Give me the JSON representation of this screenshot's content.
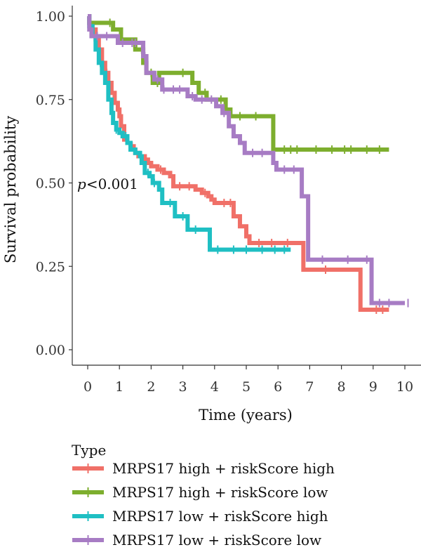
{
  "chart_data": {
    "type": "line",
    "subtype": "kaplan-meier",
    "xlabel": "Time (years)",
    "ylabel": "Survival probability",
    "xlim": [
      0,
      10
    ],
    "ylim": [
      0,
      1
    ],
    "x_ticks": [
      "0",
      "1",
      "2",
      "3",
      "4",
      "5",
      "6",
      "7",
      "8",
      "9",
      "10"
    ],
    "y_ticks": [
      "0.00",
      "0.25",
      "0.50",
      "0.75",
      "1.00"
    ],
    "grid": false,
    "annotation": {
      "italic": "p",
      "text": "<0.001"
    },
    "legend": {
      "title": "Type",
      "placement": "bottom"
    },
    "series": [
      {
        "name": "MRPS17 high + riskScore high",
        "color": "#F07068",
        "steps": [
          [
            0,
            1.0
          ],
          [
            0.05,
            0.98
          ],
          [
            0.15,
            0.96
          ],
          [
            0.25,
            0.93
          ],
          [
            0.35,
            0.9
          ],
          [
            0.45,
            0.86
          ],
          [
            0.55,
            0.83
          ],
          [
            0.65,
            0.8
          ],
          [
            0.75,
            0.77
          ],
          [
            0.85,
            0.74
          ],
          [
            0.95,
            0.72
          ],
          [
            1.0,
            0.7
          ],
          [
            1.05,
            0.67
          ],
          [
            1.15,
            0.63
          ],
          [
            1.25,
            0.62
          ],
          [
            1.35,
            0.61
          ],
          [
            1.45,
            0.6
          ],
          [
            1.5,
            0.59
          ],
          [
            1.6,
            0.58
          ],
          [
            1.8,
            0.57
          ],
          [
            1.9,
            0.56
          ],
          [
            2.0,
            0.55
          ],
          [
            2.2,
            0.54
          ],
          [
            2.4,
            0.53
          ],
          [
            2.6,
            0.52
          ],
          [
            2.7,
            0.49
          ],
          [
            3.4,
            0.48
          ],
          [
            3.6,
            0.47
          ],
          [
            3.8,
            0.46
          ],
          [
            3.9,
            0.45
          ],
          [
            4.0,
            0.44
          ],
          [
            4.6,
            0.4
          ],
          [
            4.8,
            0.37
          ],
          [
            5.0,
            0.34
          ],
          [
            5.1,
            0.32
          ],
          [
            6.8,
            0.24
          ],
          [
            8.6,
            0.12
          ],
          [
            9.5,
            0.12
          ]
        ],
        "censor": [
          0.3,
          0.6,
          1.4,
          1.8,
          2.3,
          2.9,
          3.2,
          3.7,
          4.3,
          4.5,
          5.4,
          5.8,
          6.3,
          7.5,
          9.1,
          9.3
        ]
      },
      {
        "name": "MRPS17 high + riskScore low",
        "color": "#7DAE2E",
        "steps": [
          [
            0,
            1.0
          ],
          [
            0.05,
            0.98
          ],
          [
            0.8,
            0.96
          ],
          [
            1.05,
            0.93
          ],
          [
            1.5,
            0.9
          ],
          [
            1.75,
            0.86
          ],
          [
            1.85,
            0.83
          ],
          [
            2.05,
            0.8
          ],
          [
            2.25,
            0.83
          ],
          [
            3.3,
            0.8
          ],
          [
            3.5,
            0.77
          ],
          [
            3.75,
            0.75
          ],
          [
            4.35,
            0.72
          ],
          [
            4.5,
            0.7
          ],
          [
            5.85,
            0.6
          ],
          [
            9.5,
            0.6
          ]
        ],
        "censor": [
          0.7,
          1.7,
          2.0,
          2.2,
          3.0,
          3.7,
          4.2,
          4.8,
          5.3,
          6.2,
          6.4,
          6.6,
          7.2,
          7.7,
          8.1,
          8.3,
          8.8,
          9.2
        ]
      },
      {
        "name": "MRPS17 low + riskScore high",
        "color": "#1FBFC3",
        "steps": [
          [
            0,
            1.0
          ],
          [
            0.05,
            0.97
          ],
          [
            0.15,
            0.94
          ],
          [
            0.25,
            0.9
          ],
          [
            0.35,
            0.86
          ],
          [
            0.45,
            0.83
          ],
          [
            0.55,
            0.8
          ],
          [
            0.65,
            0.75
          ],
          [
            0.75,
            0.71
          ],
          [
            0.8,
            0.68
          ],
          [
            0.9,
            0.66
          ],
          [
            1.0,
            0.65
          ],
          [
            1.1,
            0.64
          ],
          [
            1.25,
            0.62
          ],
          [
            1.35,
            0.6
          ],
          [
            1.5,
            0.59
          ],
          [
            1.65,
            0.58
          ],
          [
            1.7,
            0.56
          ],
          [
            1.8,
            0.53
          ],
          [
            1.95,
            0.52
          ],
          [
            2.05,
            0.5
          ],
          [
            2.25,
            0.48
          ],
          [
            2.35,
            0.44
          ],
          [
            2.75,
            0.4
          ],
          [
            3.15,
            0.36
          ],
          [
            3.85,
            0.3
          ],
          [
            6.4,
            0.3
          ]
        ],
        "censor": [
          0.4,
          0.9,
          1.2,
          1.9,
          2.1,
          2.6,
          3.0,
          3.4,
          4.1,
          4.6,
          5.0,
          5.5,
          5.9,
          6.2
        ]
      },
      {
        "name": "MRPS17 low + riskScore low",
        "color": "#A77CC4",
        "steps": [
          [
            0,
            1.0
          ],
          [
            0.05,
            0.96
          ],
          [
            0.12,
            0.94
          ],
          [
            0.95,
            0.92
          ],
          [
            1.75,
            0.88
          ],
          [
            1.85,
            0.83
          ],
          [
            2.1,
            0.81
          ],
          [
            2.35,
            0.78
          ],
          [
            3.15,
            0.76
          ],
          [
            3.4,
            0.75
          ],
          [
            4.05,
            0.73
          ],
          [
            4.25,
            0.71
          ],
          [
            4.45,
            0.67
          ],
          [
            4.6,
            0.64
          ],
          [
            4.8,
            0.62
          ],
          [
            4.95,
            0.59
          ],
          [
            5.85,
            0.56
          ],
          [
            5.95,
            0.54
          ],
          [
            6.75,
            0.46
          ],
          [
            6.95,
            0.27
          ],
          [
            8.95,
            0.14
          ],
          [
            10.0,
            0.14
          ]
        ],
        "censor": [
          0.3,
          0.6,
          1.1,
          1.4,
          1.5,
          1.8,
          2.2,
          2.4,
          2.7,
          2.9,
          3.3,
          3.6,
          3.9,
          4.3,
          5.2,
          5.5,
          6.2,
          6.5,
          7.4,
          8.2,
          8.8,
          9.2,
          9.5,
          10.1
        ]
      }
    ]
  }
}
